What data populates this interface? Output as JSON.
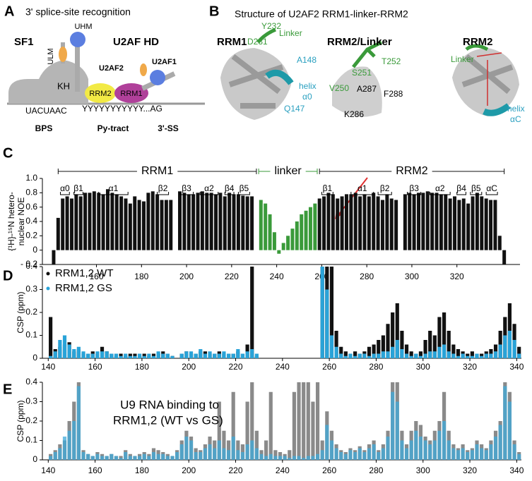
{
  "panels": {
    "A": {
      "letter": "A",
      "title": "3' splice-site recognition",
      "sf1": "SF1",
      "u2afhd": "U2AF HD",
      "uhm": "UHM",
      "ulm": "ULM",
      "u2af2": "U2AF2",
      "u2af1": "U2AF1",
      "kh": "KH",
      "rrm2": "RRM2",
      "rrm1": "RRM1",
      "bps_seq": "UACUAAC",
      "py_seq": "YYYYYYYYYYY...AG",
      "bps": "BPS",
      "py": "Py-tract",
      "ss": "3'-SS"
    },
    "B": {
      "letter": "B",
      "title": "Structure of U2AF2 RRM1-linker-RRM2",
      "rrm1": {
        "title": "RRM1",
        "y232": "Y232",
        "linker": "Linker",
        "d231": "D231",
        "a148": "A148",
        "helix": "helix",
        "a0": "α0",
        "q147": "Q147"
      },
      "rrm2linker": {
        "title": "RRM2/Linker",
        "t252": "T252",
        "s251": "S251",
        "v250": "V250",
        "a287": "A287",
        "f288": "F288",
        "k286": "K286"
      },
      "rrm2": {
        "title": "RRM2",
        "linker": "Linker",
        "helix": "helix",
        "ac": "αC"
      }
    },
    "C": {
      "letter": "C"
    },
    "D": {
      "letter": "D"
    },
    "E": {
      "letter": "E"
    }
  },
  "chart_data": [
    {
      "type": "bar",
      "ylabel": [
        "{¹H}-¹⁵N hetero-",
        "nuclear NOE"
      ],
      "x": [
        141,
        143,
        145,
        147,
        149,
        151,
        153,
        155,
        157,
        159,
        161,
        163,
        165,
        167,
        169,
        171,
        173,
        175,
        177,
        179,
        181,
        183,
        185,
        187,
        189,
        191,
        193,
        195,
        197,
        199,
        201,
        203,
        205,
        207,
        209,
        211,
        213,
        215,
        217,
        219,
        221,
        223,
        225,
        227,
        229,
        231,
        233,
        235,
        237,
        239,
        241,
        243,
        245,
        247,
        249,
        251,
        253,
        255,
        257,
        259,
        261,
        263,
        265,
        267,
        269,
        271,
        273,
        275,
        277,
        279,
        281,
        283,
        285,
        287,
        289,
        291,
        293,
        295,
        297,
        299,
        301,
        303,
        305,
        307,
        309,
        311,
        313,
        315,
        317,
        319,
        321,
        323,
        325,
        327,
        329,
        331,
        333,
        335,
        337,
        339,
        341
      ],
      "series": [
        {
          "color": "#111111",
          "values": [
            -0.2,
            0.45,
            0.72,
            0.75,
            0.72,
            0.78,
            0.75,
            0.8,
            0.8,
            0.82,
            0.8,
            0.78,
            0.85,
            0.8,
            0.78,
            0.75,
            0.72,
            0.65,
            0.75,
            0.7,
            0.68,
            0.8,
            0.82,
            0.78,
            0.7,
            0.7,
            0.7,
            null,
            0.82,
            0.8,
            0.78,
            0.78,
            0.8,
            0.82,
            0.8,
            0.8,
            0.78,
            0.8,
            0.75,
            0.8,
            0.78,
            0.78,
            0.76,
            0.75,
            0.75,
            null,
            0.7,
            0.65,
            0.5,
            0.25,
            -0.05,
            0.1,
            0.2,
            0.3,
            0.4,
            0.5,
            0.55,
            0.6,
            0.65,
            0.72,
            0.75,
            0.8,
            0.78,
            0.72,
            0.75,
            0.78,
            0.78,
            0.8,
            0.75,
            0.78,
            0.75,
            0.8,
            0.75,
            0.7,
            0.78,
            0.72,
            0.7,
            null,
            0.78,
            0.8,
            0.78,
            0.8,
            0.8,
            0.82,
            0.8,
            0.8,
            0.78,
            0.78,
            0.72,
            0.75,
            0.7,
            0.72,
            0.65,
            0.75,
            0.8,
            0.75,
            0.72,
            0.7,
            0.7,
            0.2,
            -0.2
          ]
        }
      ],
      "domains": [
        {
          "label": "RRM1",
          "range": [
            143,
            231
          ],
          "color": "#111111"
        },
        {
          "label": "linker",
          "range": [
            232,
            258
          ],
          "color": "#3a9a3a"
        },
        {
          "label": "RRM2",
          "range": [
            259,
            341
          ],
          "color": "#111111"
        }
      ],
      "ss": [
        {
          "label": "α0",
          "range": [
            144,
            148
          ]
        },
        {
          "label": "β1",
          "range": [
            150,
            154
          ]
        },
        {
          "label": "α1",
          "range": [
            161,
            174
          ]
        },
        {
          "label": "β2",
          "range": [
            187,
            192
          ]
        },
        {
          "label": "β3",
          "range": [
            197,
            203
          ]
        },
        {
          "label": "α2",
          "range": [
            206,
            214
          ]
        },
        {
          "label": "β4",
          "range": [
            217,
            221
          ]
        },
        {
          "label": "β5",
          "range": [
            223,
            228
          ]
        },
        {
          "label": "β1",
          "range": [
            260,
            265
          ]
        },
        {
          "label": "α1",
          "range": [
            273,
            283
          ]
        },
        {
          "label": "β2",
          "range": [
            285,
            291
          ]
        },
        {
          "label": "β3",
          "range": [
            298,
            304
          ]
        },
        {
          "label": "α2",
          "range": [
            308,
            317
          ]
        },
        {
          "label": "β4",
          "range": [
            320,
            324
          ]
        },
        {
          "label": "β5",
          "range": [
            326,
            331
          ]
        },
        {
          "label": "αC",
          "range": [
            333,
            338
          ]
        }
      ],
      "xlim": [
        136,
        348
      ],
      "ylim": [
        -0.2,
        1.0
      ],
      "xticks": [
        160,
        180,
        200,
        220,
        240,
        260,
        280,
        300,
        320
      ],
      "yticks": [
        {
          "value": -0.2,
          "label": "- 0.2"
        },
        0,
        0.2,
        0.4,
        0.6,
        0.8,
        {
          "value": 1,
          "label": "1.0"
        }
      ]
    },
    {
      "type": "bar",
      "ylabel": [
        "CSP (ppm)"
      ],
      "legend": "upper left",
      "x": [
        141,
        143,
        145,
        147,
        149,
        151,
        153,
        155,
        157,
        159,
        161,
        163,
        165,
        167,
        169,
        171,
        173,
        175,
        177,
        179,
        181,
        183,
        185,
        187,
        189,
        191,
        193,
        195,
        197,
        199,
        201,
        203,
        205,
        207,
        209,
        211,
        213,
        215,
        217,
        219,
        221,
        223,
        225,
        227,
        229,
        231,
        233,
        235,
        237,
        239,
        241,
        243,
        245,
        247,
        249,
        251,
        253,
        255,
        257,
        259,
        261,
        263,
        265,
        267,
        269,
        271,
        273,
        275,
        277,
        279,
        281,
        283,
        285,
        287,
        289,
        291,
        293,
        295,
        297,
        299,
        301,
        303,
        305,
        307,
        309,
        311,
        313,
        315,
        317,
        319,
        321,
        323,
        325,
        327,
        329,
        331,
        333,
        335,
        337,
        339,
        341
      ],
      "series": [
        {
          "name": "RRM1,2 WT",
          "color": "#111111",
          "values": [
            0.18,
            0.04,
            0.05,
            0.06,
            0.07,
            0.03,
            0.04,
            0.02,
            0.02,
            0.03,
            0.02,
            0.05,
            0.03,
            0.02,
            0.01,
            0.02,
            0.01,
            0.02,
            0.02,
            0.01,
            0.02,
            0.01,
            0.02,
            0.02,
            0.03,
            0.02,
            0.01,
            null,
            0.02,
            0.03,
            0.02,
            0.02,
            0.03,
            0.03,
            0.02,
            0.02,
            0.03,
            0.02,
            0.02,
            0.02,
            0.03,
            0.02,
            0.06,
            0.4,
            0.01,
            null,
            null,
            null,
            null,
            null,
            null,
            null,
            null,
            null,
            null,
            null,
            null,
            null,
            0.4,
            0.4,
            0.4,
            0.12,
            0.05,
            0.03,
            0.02,
            0.03,
            0.02,
            0.03,
            0.05,
            0.06,
            0.08,
            0.1,
            0.15,
            0.2,
            0.24,
            0.12,
            0.06,
            0.03,
            0.02,
            0.03,
            0.08,
            0.12,
            0.1,
            0.18,
            0.2,
            0.12,
            0.06,
            0.04,
            0.03,
            0.02,
            0.03,
            0.02,
            0.02,
            0.03,
            0.04,
            0.06,
            0.12,
            0.18,
            0.24,
            0.15,
            0.05
          ]
        },
        {
          "name": "RRM1,2 GS",
          "color": "#29a3d8",
          "values": [
            0.01,
            0.03,
            0.08,
            0.1,
            0.06,
            0.04,
            0.05,
            0.03,
            0.02,
            0.02,
            0.03,
            0.03,
            0.03,
            0.02,
            0.02,
            0.01,
            0.02,
            0.01,
            0.01,
            0.02,
            0.01,
            0.02,
            0.01,
            0.03,
            0.02,
            0.02,
            0.01,
            null,
            0.02,
            0.03,
            0.03,
            0.02,
            0.04,
            0.02,
            0.03,
            0.02,
            0.02,
            0.03,
            0.02,
            0.02,
            0.04,
            0.02,
            0.03,
            0.04,
            0.02,
            null,
            null,
            null,
            null,
            null,
            null,
            null,
            null,
            null,
            null,
            null,
            null,
            null,
            0.4,
            0.3,
            0.1,
            0.05,
            0.02,
            0.01,
            0.02,
            0.01,
            0.02,
            0.02,
            0.01,
            0.02,
            0.02,
            0.03,
            0.03,
            0.05,
            0.08,
            0.04,
            0.02,
            0.01,
            0.02,
            0.01,
            0.02,
            0.03,
            0.03,
            0.05,
            0.06,
            0.03,
            0.02,
            0.01,
            0.02,
            0.01,
            0.01,
            0.02,
            0.01,
            0.02,
            0.02,
            0.03,
            0.06,
            0.1,
            0.12,
            0.08,
            0.02
          ]
        }
      ],
      "xlim": [
        137.5,
        342
      ],
      "ylim": [
        0,
        0.4
      ],
      "xticks": [
        140,
        160,
        180,
        200,
        220,
        240,
        260,
        280,
        300,
        320,
        340
      ],
      "yticks": [
        0,
        0.1,
        0.2,
        0.3,
        0.4
      ]
    },
    {
      "type": "bar",
      "ylabel": [
        "CSP (ppm)"
      ],
      "title": [
        "U9 RNA binding to",
        "RRM1,2 (WT vs",
        "GS",
        ")"
      ],
      "x": [
        141,
        143,
        145,
        147,
        149,
        151,
        153,
        155,
        157,
        159,
        161,
        163,
        165,
        167,
        169,
        171,
        173,
        175,
        177,
        179,
        181,
        183,
        185,
        187,
        189,
        191,
        193,
        195,
        197,
        199,
        201,
        203,
        205,
        207,
        209,
        211,
        213,
        215,
        217,
        219,
        221,
        223,
        225,
        227,
        229,
        231,
        233,
        235,
        237,
        239,
        241,
        243,
        245,
        247,
        249,
        251,
        253,
        255,
        257,
        259,
        261,
        263,
        265,
        267,
        269,
        271,
        273,
        275,
        277,
        279,
        281,
        283,
        285,
        287,
        289,
        291,
        293,
        295,
        297,
        299,
        301,
        303,
        305,
        307,
        309,
        311,
        313,
        315,
        317,
        319,
        321,
        323,
        325,
        327,
        329,
        331,
        333,
        335,
        337,
        339,
        341
      ],
      "series": [
        {
          "color": "#8a8a8a",
          "values": [
            0.03,
            0.05,
            0.08,
            0.1,
            0.2,
            0.3,
            0.4,
            0.05,
            0.03,
            0.02,
            0.04,
            0.03,
            0.02,
            0.03,
            0.02,
            0.02,
            0.05,
            0.03,
            0.02,
            0.03,
            0.04,
            0.03,
            0.06,
            0.05,
            0.04,
            0.03,
            0.02,
            0.05,
            0.1,
            0.15,
            0.12,
            0.06,
            0.05,
            0.08,
            0.12,
            0.1,
            0.3,
            0.15,
            0.1,
            0.35,
            0.1,
            0.08,
            0.3,
            0.4,
            0.15,
            0.05,
            0.1,
            0.35,
            0.05,
            0.04,
            0.03,
            0.05,
            0.35,
            0.4,
            0.4,
            0.4,
            0.3,
            0.4,
            0.1,
            0.25,
            0.15,
            0.08,
            0.05,
            0.04,
            0.06,
            0.05,
            0.07,
            0.05,
            0.08,
            0.1,
            0.05,
            0.08,
            0.15,
            0.4,
            0.4,
            0.15,
            0.08,
            0.15,
            0.2,
            0.18,
            0.12,
            0.1,
            0.15,
            0.2,
            0.35,
            0.15,
            0.08,
            0.06,
            0.08,
            0.05,
            0.06,
            0.1,
            0.08,
            0.06,
            0.1,
            0.15,
            0.2,
            0.4,
            0.35,
            0.1,
            0.04
          ]
        },
        {
          "color": "#3fa9da",
          "opacity": 0.75,
          "values": [
            0.02,
            0.04,
            0.06,
            0.12,
            0.15,
            0.2,
            0.38,
            0.04,
            0.03,
            0.02,
            0.03,
            0.02,
            0.02,
            0.03,
            0.02,
            0.01,
            0.04,
            0.02,
            0.02,
            0.02,
            0.03,
            0.02,
            0.04,
            0.03,
            0.03,
            0.02,
            0.02,
            0.04,
            0.08,
            0.12,
            0.1,
            0.04,
            0.04,
            0.06,
            0.08,
            0.06,
            0.1,
            0.06,
            0.05,
            0.12,
            0.05,
            0.04,
            0.08,
            0.1,
            0.06,
            0.03,
            0.02,
            0.03,
            0.02,
            0.02,
            0.02,
            0.01,
            0.02,
            0.02,
            0.01,
            0.02,
            0.02,
            0.03,
            0.05,
            0.18,
            0.1,
            0.06,
            0.04,
            0.03,
            0.05,
            0.04,
            0.06,
            0.04,
            0.06,
            0.08,
            0.04,
            0.06,
            0.12,
            0.35,
            0.3,
            0.1,
            0.06,
            0.1,
            0.15,
            0.12,
            0.1,
            0.08,
            0.1,
            0.15,
            0.2,
            0.1,
            0.06,
            0.05,
            0.06,
            0.04,
            0.05,
            0.08,
            0.06,
            0.05,
            0.08,
            0.12,
            0.18,
            0.38,
            0.3,
            0.08,
            0.03
          ]
        }
      ],
      "xlim": [
        137.5,
        342
      ],
      "ylim": [
        0,
        0.4
      ],
      "xticks": [
        140,
        160,
        180,
        200,
        220,
        240,
        260,
        280,
        300,
        320,
        340
      ],
      "yticks": [
        0,
        0.1,
        0.2,
        0.3,
        0.4
      ]
    }
  ]
}
